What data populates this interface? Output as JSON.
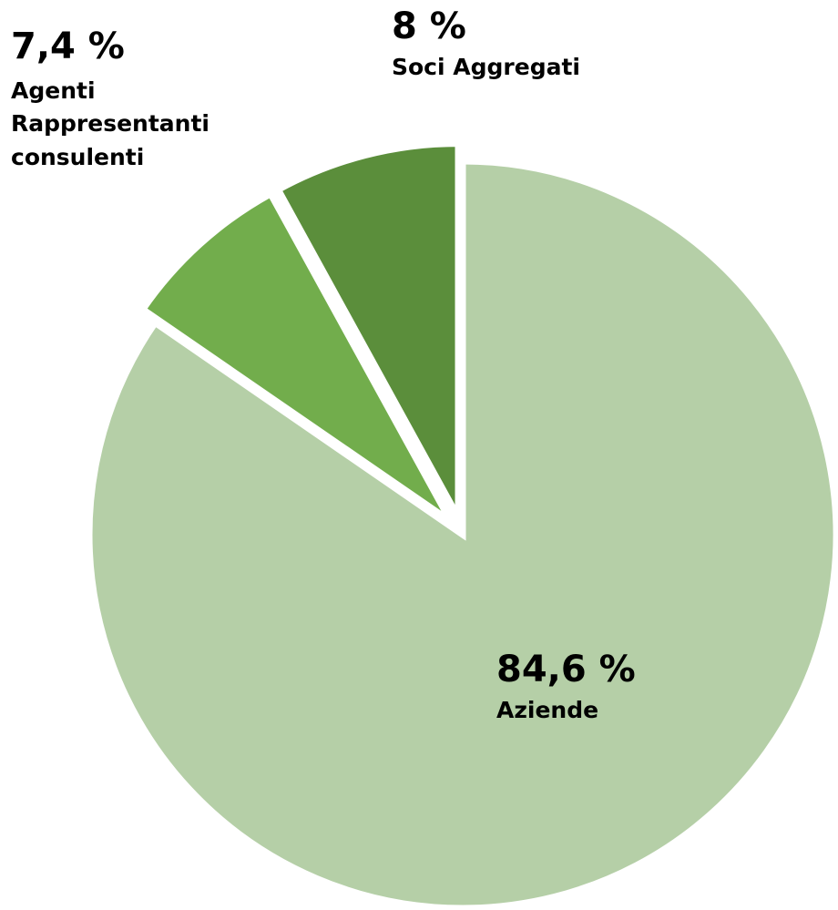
{
  "chart_data": {
    "type": "pie",
    "slices": [
      {
        "label": "Aziende",
        "percent_label": "84,6 %",
        "value": 84.6,
        "color": "#b5cfa7",
        "exploded": false
      },
      {
        "label": "Agenti Rappresentanti consulenti",
        "label_lines": [
          "Agenti",
          "Rappresentanti",
          "consulenti"
        ],
        "percent_label": "7,4 %",
        "value": 7.4,
        "color": "#72ad4c",
        "exploded": true
      },
      {
        "label": "Soci Aggregati",
        "percent_label": "8 %",
        "value": 8,
        "color": "#5b8e3b",
        "exploded": true
      }
    ]
  }
}
